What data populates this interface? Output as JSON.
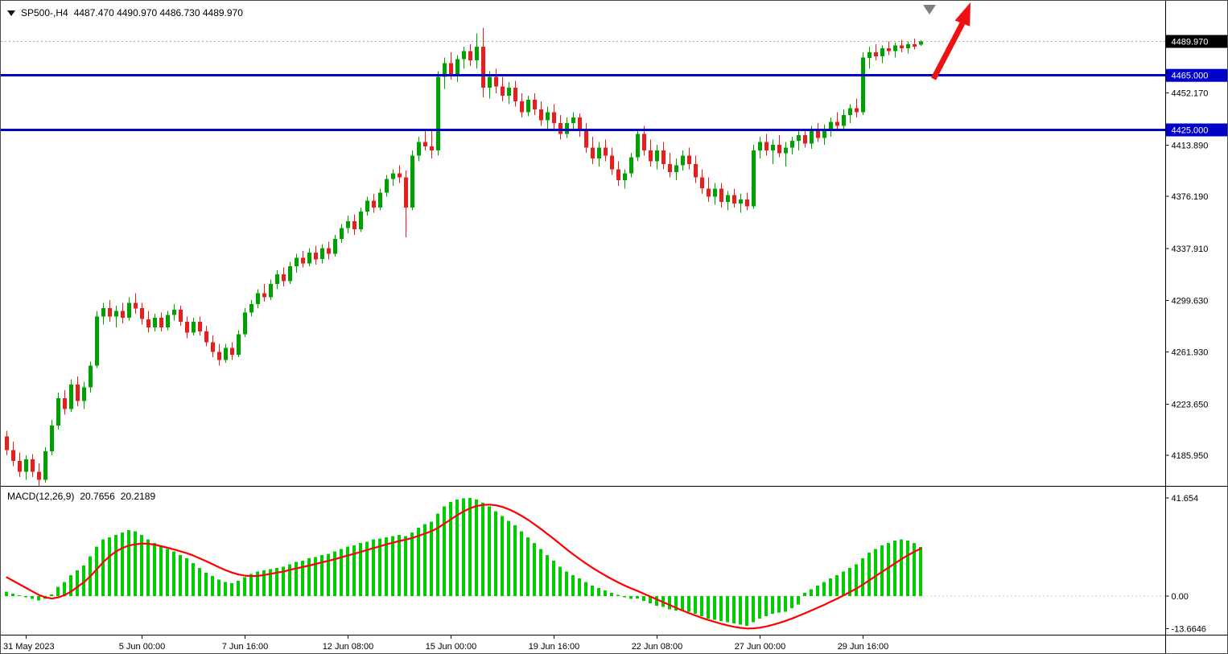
{
  "header": {
    "symbol": "SP500-,H4",
    "ohlc": "4487.470 4490.970 4486.730 4489.970"
  },
  "macd": {
    "label": "MACD(12,26,9)",
    "main_value": "20.7656",
    "signal_value": "20.2189"
  },
  "chart_data": {
    "type": "candlestick",
    "symbol": "SP500-",
    "timeframe": "H4",
    "last_ohlc": {
      "open": 4487.47,
      "high": 4490.97,
      "low": 4486.73,
      "close": 4489.97
    },
    "colors": {
      "bull": "#00A000",
      "bear": "#E22020",
      "hline": "#0000C8",
      "current_line": "#ABABAB",
      "arrow": "#EE1111",
      "marker": "#7F7F7F"
    },
    "price_axis": {
      "range": [
        4163.6,
        4518.6
      ],
      "ticks": [
        {
          "label": "4452.170",
          "value": 4452.17
        },
        {
          "label": "4413.890",
          "value": 4413.89
        },
        {
          "label": "4376.190",
          "value": 4376.19
        },
        {
          "label": "4337.910",
          "value": 4337.91
        },
        {
          "label": "4299.630",
          "value": 4299.63
        },
        {
          "label": "4261.930",
          "value": 4261.93
        },
        {
          "label": "4223.650",
          "value": 4223.65
        },
        {
          "label": "4185.950",
          "value": 4185.95
        }
      ],
      "current": {
        "label": "4489.970",
        "value": 4489.97,
        "bg": "#000000"
      },
      "levels": [
        {
          "label": "4465.000",
          "value": 4465.0,
          "color": "#0000C8"
        },
        {
          "label": "4425.000",
          "value": 4425.0,
          "color": "#0000C8"
        }
      ]
    },
    "time_axis": {
      "labels": [
        {
          "label": "31 May 2023",
          "index": 3
        },
        {
          "label": "5 Jun 00:00",
          "index": 21
        },
        {
          "label": "7 Jun 16:00",
          "index": 37
        },
        {
          "label": "12 Jun 08:00",
          "index": 53
        },
        {
          "label": "15 Jun 00:00",
          "index": 69
        },
        {
          "label": "19 Jun 16:00",
          "index": 85
        },
        {
          "label": "22 Jun 08:00",
          "index": 101
        },
        {
          "label": "27 Jun 00:00",
          "index": 117
        },
        {
          "label": "29 Jun 16:00",
          "index": 133
        }
      ]
    },
    "candles": [
      [
        4200,
        4204,
        4186,
        4190
      ],
      [
        4190,
        4196,
        4178,
        4182
      ],
      [
        4182,
        4188,
        4170,
        4174
      ],
      [
        4174,
        4186,
        4168,
        4183
      ],
      [
        4183,
        4187,
        4170,
        4174
      ],
      [
        4174,
        4180,
        4163,
        4168
      ],
      [
        4168,
        4192,
        4166,
        4189
      ],
      [
        4189,
        4212,
        4186,
        4208
      ],
      [
        4208,
        4232,
        4205,
        4228
      ],
      [
        4228,
        4234,
        4216,
        4220
      ],
      [
        4220,
        4242,
        4218,
        4238
      ],
      [
        4238,
        4244,
        4222,
        4226
      ],
      [
        4226,
        4240,
        4220,
        4236
      ],
      [
        4236,
        4255,
        4232,
        4252
      ],
      [
        4252,
        4292,
        4250,
        4288
      ],
      [
        4288,
        4298,
        4282,
        4294
      ],
      [
        4294,
        4300,
        4284,
        4288
      ],
      [
        4288,
        4296,
        4280,
        4292
      ],
      [
        4292,
        4298,
        4283,
        4287
      ],
      [
        4287,
        4302,
        4285,
        4298
      ],
      [
        4298,
        4305,
        4290,
        4294
      ],
      [
        4294,
        4298,
        4282,
        4286
      ],
      [
        4286,
        4292,
        4276,
        4280
      ],
      [
        4280,
        4290,
        4277,
        4287
      ],
      [
        4287,
        4291,
        4277,
        4280
      ],
      [
        4280,
        4292,
        4278,
        4289
      ],
      [
        4289,
        4297,
        4285,
        4293
      ],
      [
        4293,
        4296,
        4281,
        4284
      ],
      [
        4284,
        4288,
        4272,
        4276
      ],
      [
        4276,
        4287,
        4274,
        4284
      ],
      [
        4284,
        4288,
        4274,
        4277
      ],
      [
        4277,
        4281,
        4266,
        4269
      ],
      [
        4269,
        4274,
        4258,
        4262
      ],
      [
        4262,
        4268,
        4252,
        4256
      ],
      [
        4256,
        4268,
        4254,
        4265
      ],
      [
        4265,
        4269,
        4256,
        4260
      ],
      [
        4260,
        4278,
        4258,
        4275
      ],
      [
        4275,
        4294,
        4273,
        4291
      ],
      [
        4291,
        4300,
        4288,
        4297
      ],
      [
        4297,
        4308,
        4294,
        4305
      ],
      [
        4305,
        4312,
        4299,
        4302
      ],
      [
        4302,
        4315,
        4300,
        4312
      ],
      [
        4312,
        4322,
        4308,
        4319
      ],
      [
        4319,
        4324,
        4310,
        4314
      ],
      [
        4314,
        4328,
        4312,
        4325
      ],
      [
        4325,
        4334,
        4320,
        4331
      ],
      [
        4331,
        4336,
        4324,
        4327
      ],
      [
        4327,
        4338,
        4325,
        4335
      ],
      [
        4335,
        4340,
        4326,
        4330
      ],
      [
        4330,
        4341,
        4327,
        4338
      ],
      [
        4338,
        4343,
        4330,
        4334
      ],
      [
        4334,
        4348,
        4332,
        4345
      ],
      [
        4345,
        4356,
        4342,
        4353
      ],
      [
        4353,
        4362,
        4349,
        4358
      ],
      [
        4358,
        4363,
        4348,
        4352
      ],
      [
        4352,
        4368,
        4350,
        4365
      ],
      [
        4365,
        4376,
        4362,
        4373
      ],
      [
        4373,
        4378,
        4364,
        4368
      ],
      [
        4368,
        4382,
        4366,
        4379
      ],
      [
        4379,
        4392,
        4376,
        4389
      ],
      [
        4389,
        4396,
        4384,
        4393
      ],
      [
        4393,
        4399,
        4386,
        4390
      ],
      [
        4390,
        4395,
        4346,
        4368
      ],
      [
        4368,
        4410,
        4366,
        4406
      ],
      [
        4406,
        4420,
        4402,
        4416
      ],
      [
        4416,
        4426,
        4410,
        4413
      ],
      [
        4413,
        4424,
        4404,
        4410
      ],
      [
        4410,
        4468,
        4406,
        4464
      ],
      [
        4464,
        4478,
        4455,
        4474
      ],
      [
        4474,
        4482,
        4462,
        4466
      ],
      [
        4466,
        4480,
        4460,
        4477
      ],
      [
        4477,
        4486,
        4470,
        4483
      ],
      [
        4483,
        4488,
        4472,
        4476
      ],
      [
        4476,
        4496,
        4470,
        4486
      ],
      [
        4486,
        4500,
        4449,
        4456
      ],
      [
        4456,
        4468,
        4448,
        4464
      ],
      [
        4464,
        4470,
        4452,
        4457
      ],
      [
        4457,
        4464,
        4446,
        4450
      ],
      [
        4450,
        4460,
        4444,
        4456
      ],
      [
        4456,
        4461,
        4442,
        4446
      ],
      [
        4446,
        4452,
        4434,
        4438
      ],
      [
        4438,
        4450,
        4435,
        4447
      ],
      [
        4447,
        4452,
        4436,
        4440
      ],
      [
        4440,
        4446,
        4428,
        4432
      ],
      [
        4432,
        4442,
        4425,
        4438
      ],
      [
        4438,
        4444,
        4426,
        4430
      ],
      [
        4430,
        4436,
        4418,
        4422
      ],
      [
        4422,
        4434,
        4419,
        4430
      ],
      [
        4430,
        4438,
        4424,
        4434
      ],
      [
        4434,
        4437,
        4420,
        4424
      ],
      [
        4424,
        4430,
        4408,
        4412
      ],
      [
        4412,
        4420,
        4400,
        4404
      ],
      [
        4404,
        4416,
        4398,
        4412
      ],
      [
        4412,
        4418,
        4402,
        4406
      ],
      [
        4406,
        4412,
        4392,
        4396
      ],
      [
        4396,
        4402,
        4384,
        4388
      ],
      [
        4388,
        4396,
        4382,
        4393
      ],
      [
        4393,
        4408,
        4390,
        4405
      ],
      [
        4405,
        4426,
        4402,
        4422
      ],
      [
        4422,
        4428,
        4406,
        4410
      ],
      [
        4410,
        4418,
        4398,
        4402
      ],
      [
        4402,
        4414,
        4396,
        4410
      ],
      [
        4410,
        4416,
        4396,
        4400
      ],
      [
        4400,
        4408,
        4390,
        4394
      ],
      [
        4394,
        4404,
        4388,
        4399
      ],
      [
        4399,
        4410,
        4395,
        4406
      ],
      [
        4406,
        4412,
        4396,
        4400
      ],
      [
        4400,
        4406,
        4386,
        4390
      ],
      [
        4390,
        4396,
        4378,
        4382
      ],
      [
        4382,
        4390,
        4372,
        4376
      ],
      [
        4376,
        4386,
        4370,
        4382
      ],
      [
        4382,
        4386,
        4368,
        4372
      ],
      [
        4372,
        4380,
        4366,
        4377
      ],
      [
        4377,
        4382,
        4368,
        4371
      ],
      [
        4371,
        4378,
        4364,
        4374
      ],
      [
        4374,
        4379,
        4366,
        4369
      ],
      [
        4369,
        4414,
        4367,
        4410
      ],
      [
        4410,
        4420,
        4404,
        4416
      ],
      [
        4416,
        4422,
        4406,
        4410
      ],
      [
        4410,
        4418,
        4400,
        4414
      ],
      [
        4414,
        4421,
        4405,
        4408
      ],
      [
        4408,
        4416,
        4398,
        4412
      ],
      [
        4412,
        4420,
        4407,
        4417
      ],
      [
        4417,
        4424,
        4410,
        4421
      ],
      [
        4421,
        4426,
        4412,
        4415
      ],
      [
        4415,
        4428,
        4411,
        4424
      ],
      [
        4424,
        4430,
        4416,
        4419
      ],
      [
        4419,
        4429,
        4414,
        4426
      ],
      [
        4426,
        4434,
        4420,
        4431
      ],
      [
        4431,
        4438,
        4424,
        4428
      ],
      [
        4428,
        4440,
        4425,
        4436
      ],
      [
        4436,
        4444,
        4430,
        4441
      ],
      [
        4441,
        4448,
        4434,
        4438
      ],
      [
        4438,
        4482,
        4436,
        4478
      ],
      [
        4478,
        4486,
        4470,
        4482
      ],
      [
        4482,
        4488,
        4476,
        4479
      ],
      [
        4479,
        4487,
        4474,
        4485
      ],
      [
        4485,
        4490,
        4480,
        4483
      ],
      [
        4483,
        4489,
        4478,
        4487
      ],
      [
        4487,
        4491,
        4482,
        4485
      ],
      [
        4485,
        4490,
        4481,
        4488
      ],
      [
        4488,
        4492,
        4484,
        4486
      ],
      [
        4487.47,
        4490.97,
        4486.73,
        4489.97
      ]
    ],
    "macd_panel": {
      "indicator": "MACD(12,26,9)",
      "range": [
        -16.3,
        46.4
      ],
      "histogram_color": "#00CD00",
      "signal_color": "#FF0000",
      "ticks": [
        {
          "label": "41.654",
          "value": 41.654
        },
        {
          "label": "0.00",
          "value": 0
        },
        {
          "label": "-13.6646",
          "value": -13.6646
        }
      ],
      "histogram": [
        2,
        1,
        0.4,
        -0.5,
        -1.2,
        -1.8,
        -1.2,
        0.8,
        4,
        6,
        9,
        11,
        13,
        17,
        21,
        24,
        25,
        26,
        27,
        28,
        27.5,
        26,
        24,
        22.5,
        21,
        20,
        19,
        17.5,
        16,
        14,
        12,
        10,
        8.5,
        7,
        6,
        5.5,
        6.5,
        8,
        9.5,
        10.5,
        11,
        11.5,
        12,
        12.5,
        13.5,
        14.5,
        15,
        16,
        16.5,
        17.5,
        18,
        19,
        20,
        21,
        21.5,
        22.5,
        23,
        24,
        24.5,
        25,
        25.5,
        26,
        25.5,
        27,
        29,
        30.5,
        31.5,
        35,
        38,
        40,
        41,
        41.5,
        41.654,
        41,
        39.5,
        38,
        36,
        34,
        32,
        30,
        27.5,
        25,
        22.5,
        20,
        17.5,
        15,
        12.5,
        10.5,
        9,
        7.5,
        6,
        4.5,
        3.5,
        2.5,
        1.5,
        0.5,
        -0.5,
        -1.2,
        -1,
        -2,
        -3,
        -4,
        -4.5,
        -5.5,
        -6,
        -6,
        -6.5,
        -7.5,
        -8.5,
        -9.5,
        -10,
        -10.5,
        -11,
        -11.5,
        -12,
        -12.5,
        -11,
        -9.5,
        -8.5,
        -7.5,
        -7,
        -6.5,
        -5,
        -3.5,
        1.5,
        3,
        4.5,
        6,
        7.5,
        9,
        10.5,
        12,
        13.5,
        16,
        18.5,
        20,
        21.5,
        22.5,
        23.5,
        24,
        23.5,
        22.5,
        20.7656
      ],
      "signal": [
        8,
        6.5,
        5,
        3.5,
        2,
        0.5,
        -0.5,
        -1,
        -0.5,
        0.5,
        2,
        4,
        6,
        8.5,
        11.5,
        14.5,
        17,
        19,
        20.5,
        21.5,
        22,
        22.3,
        22.2,
        21.8,
        21.2,
        20.5,
        19.8,
        19,
        18.2,
        17.2,
        16,
        14.8,
        13.5,
        12.2,
        11,
        10,
        9.2,
        8.7,
        8.5,
        8.6,
        9,
        9.5,
        10,
        10.5,
        11.2,
        11.8,
        12.4,
        13,
        13.7,
        14.4,
        15,
        15.7,
        16.5,
        17.3,
        18,
        18.8,
        19.6,
        20.4,
        21.2,
        22,
        22.7,
        23.4,
        24,
        24.7,
        25.6,
        26.6,
        27.6,
        29,
        30.8,
        32.6,
        34.4,
        36,
        37.3,
        38.2,
        38.7,
        38.8,
        38.5,
        37.8,
        36.8,
        35.5,
        34,
        32.3,
        30.4,
        28.4,
        26.3,
        24.2,
        22,
        19.8,
        17.7,
        15.7,
        13.8,
        12,
        10.3,
        8.7,
        7.2,
        5.8,
        4.5,
        3.3,
        2.2,
        1.0,
        -0.2,
        -1.4,
        -2.6,
        -3.8,
        -5,
        -6.1,
        -7.2,
        -8.2,
        -9.2,
        -10.1,
        -10.9,
        -11.7,
        -12.4,
        -13,
        -13.4,
        -13.66,
        -13.6,
        -13.3,
        -12.8,
        -12.1,
        -11.3,
        -10.4,
        -9.4,
        -8.3,
        -7.2,
        -6,
        -4.8,
        -3.6,
        -2.3,
        -1,
        0.4,
        1.8,
        3.3,
        5,
        6.8,
        8.6,
        10.4,
        12.2,
        14,
        15.8,
        17.4,
        18.9,
        20.2189
      ]
    }
  }
}
